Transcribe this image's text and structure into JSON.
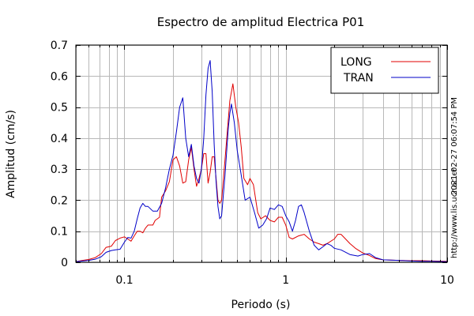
{
  "chart_data": {
    "type": "line",
    "title": "Espectro de amplitud Electrica P01",
    "xlabel": "Periodo (s)",
    "ylabel": "Amplitud (cm/s)",
    "x_scale": "log",
    "xlim": [
      0.05,
      10
    ],
    "ylim": [
      0,
      0.7
    ],
    "x_tick_labels": [
      "0.1",
      "1",
      "10"
    ],
    "y_tick_labels": [
      "0",
      "0.1",
      "0.2",
      "0.3",
      "0.4",
      "0.5",
      "0.6",
      "0.7"
    ],
    "grid": true,
    "legend_position": "top-right",
    "side_labels": [
      "2021-02-27 06:07:54 PM",
      "http://www.lis.ucr.ac.cr"
    ],
    "series": [
      {
        "name": "LONG",
        "color": "#e00000",
        "points": [
          [
            0.05,
            0.002
          ],
          [
            0.055,
            0.006
          ],
          [
            0.06,
            0.009
          ],
          [
            0.066,
            0.015
          ],
          [
            0.072,
            0.028
          ],
          [
            0.077,
            0.048
          ],
          [
            0.083,
            0.052
          ],
          [
            0.088,
            0.07
          ],
          [
            0.094,
            0.078
          ],
          [
            0.1,
            0.082
          ],
          [
            0.105,
            0.075
          ],
          [
            0.11,
            0.068
          ],
          [
            0.115,
            0.085
          ],
          [
            0.12,
            0.1
          ],
          [
            0.125,
            0.1
          ],
          [
            0.13,
            0.095
          ],
          [
            0.135,
            0.11
          ],
          [
            0.14,
            0.12
          ],
          [
            0.145,
            0.12
          ],
          [
            0.15,
            0.12
          ],
          [
            0.155,
            0.135
          ],
          [
            0.16,
            0.14
          ],
          [
            0.165,
            0.145
          ],
          [
            0.17,
            0.21
          ],
          [
            0.18,
            0.23
          ],
          [
            0.19,
            0.26
          ],
          [
            0.2,
            0.33
          ],
          [
            0.21,
            0.34
          ],
          [
            0.22,
            0.31
          ],
          [
            0.23,
            0.255
          ],
          [
            0.24,
            0.26
          ],
          [
            0.25,
            0.33
          ],
          [
            0.26,
            0.37
          ],
          [
            0.27,
            0.3
          ],
          [
            0.28,
            0.245
          ],
          [
            0.29,
            0.27
          ],
          [
            0.3,
            0.3
          ],
          [
            0.31,
            0.35
          ],
          [
            0.32,
            0.35
          ],
          [
            0.33,
            0.255
          ],
          [
            0.34,
            0.29
          ],
          [
            0.35,
            0.34
          ],
          [
            0.36,
            0.34
          ],
          [
            0.37,
            0.27
          ],
          [
            0.38,
            0.2
          ],
          [
            0.39,
            0.19
          ],
          [
            0.4,
            0.2
          ],
          [
            0.42,
            0.33
          ],
          [
            0.45,
            0.52
          ],
          [
            0.47,
            0.575
          ],
          [
            0.49,
            0.5
          ],
          [
            0.51,
            0.45
          ],
          [
            0.53,
            0.37
          ],
          [
            0.55,
            0.27
          ],
          [
            0.58,
            0.25
          ],
          [
            0.6,
            0.27
          ],
          [
            0.63,
            0.25
          ],
          [
            0.67,
            0.16
          ],
          [
            0.7,
            0.14
          ],
          [
            0.75,
            0.15
          ],
          [
            0.8,
            0.135
          ],
          [
            0.85,
            0.13
          ],
          [
            0.9,
            0.145
          ],
          [
            0.95,
            0.145
          ],
          [
            1.0,
            0.12
          ],
          [
            1.05,
            0.08
          ],
          [
            1.1,
            0.075
          ],
          [
            1.2,
            0.085
          ],
          [
            1.3,
            0.09
          ],
          [
            1.4,
            0.075
          ],
          [
            1.5,
            0.065
          ],
          [
            1.6,
            0.06
          ],
          [
            1.7,
            0.055
          ],
          [
            1.8,
            0.06
          ],
          [
            2.0,
            0.075
          ],
          [
            2.1,
            0.09
          ],
          [
            2.2,
            0.09
          ],
          [
            2.3,
            0.08
          ],
          [
            2.5,
            0.06
          ],
          [
            2.7,
            0.045
          ],
          [
            3.0,
            0.03
          ],
          [
            3.3,
            0.022
          ],
          [
            3.6,
            0.012
          ],
          [
            4.0,
            0.008
          ],
          [
            5.0,
            0.006
          ],
          [
            6.0,
            0.005
          ],
          [
            7.0,
            0.005
          ],
          [
            8.0,
            0.004
          ],
          [
            10.0,
            0.003
          ]
        ]
      },
      {
        "name": "TRAN",
        "color": "#0000c8",
        "points": [
          [
            0.05,
            0.002
          ],
          [
            0.055,
            0.004
          ],
          [
            0.06,
            0.006
          ],
          [
            0.066,
            0.01
          ],
          [
            0.072,
            0.018
          ],
          [
            0.077,
            0.032
          ],
          [
            0.083,
            0.038
          ],
          [
            0.088,
            0.04
          ],
          [
            0.094,
            0.042
          ],
          [
            0.1,
            0.065
          ],
          [
            0.105,
            0.08
          ],
          [
            0.11,
            0.078
          ],
          [
            0.115,
            0.1
          ],
          [
            0.12,
            0.14
          ],
          [
            0.125,
            0.175
          ],
          [
            0.13,
            0.19
          ],
          [
            0.135,
            0.18
          ],
          [
            0.14,
            0.18
          ],
          [
            0.15,
            0.165
          ],
          [
            0.16,
            0.165
          ],
          [
            0.17,
            0.19
          ],
          [
            0.18,
            0.24
          ],
          [
            0.19,
            0.3
          ],
          [
            0.2,
            0.345
          ],
          [
            0.21,
            0.42
          ],
          [
            0.22,
            0.5
          ],
          [
            0.23,
            0.53
          ],
          [
            0.24,
            0.4
          ],
          [
            0.25,
            0.34
          ],
          [
            0.26,
            0.38
          ],
          [
            0.27,
            0.31
          ],
          [
            0.28,
            0.27
          ],
          [
            0.29,
            0.255
          ],
          [
            0.3,
            0.3
          ],
          [
            0.31,
            0.4
          ],
          [
            0.32,
            0.54
          ],
          [
            0.33,
            0.625
          ],
          [
            0.34,
            0.65
          ],
          [
            0.35,
            0.55
          ],
          [
            0.36,
            0.38
          ],
          [
            0.37,
            0.26
          ],
          [
            0.38,
            0.18
          ],
          [
            0.39,
            0.14
          ],
          [
            0.4,
            0.15
          ],
          [
            0.42,
            0.28
          ],
          [
            0.44,
            0.43
          ],
          [
            0.45,
            0.48
          ],
          [
            0.46,
            0.51
          ],
          [
            0.48,
            0.45
          ],
          [
            0.5,
            0.36
          ],
          [
            0.53,
            0.28
          ],
          [
            0.56,
            0.2
          ],
          [
            0.6,
            0.21
          ],
          [
            0.64,
            0.16
          ],
          [
            0.68,
            0.11
          ],
          [
            0.72,
            0.12
          ],
          [
            0.76,
            0.14
          ],
          [
            0.8,
            0.175
          ],
          [
            0.85,
            0.17
          ],
          [
            0.9,
            0.185
          ],
          [
            0.95,
            0.18
          ],
          [
            1.0,
            0.15
          ],
          [
            1.05,
            0.13
          ],
          [
            1.1,
            0.1
          ],
          [
            1.15,
            0.135
          ],
          [
            1.2,
            0.18
          ],
          [
            1.25,
            0.185
          ],
          [
            1.3,
            0.16
          ],
          [
            1.4,
            0.1
          ],
          [
            1.5,
            0.055
          ],
          [
            1.6,
            0.04
          ],
          [
            1.7,
            0.05
          ],
          [
            1.8,
            0.06
          ],
          [
            1.9,
            0.055
          ],
          [
            2.0,
            0.045
          ],
          [
            2.2,
            0.04
          ],
          [
            2.5,
            0.025
          ],
          [
            2.8,
            0.02
          ],
          [
            3.0,
            0.025
          ],
          [
            3.3,
            0.028
          ],
          [
            3.6,
            0.015
          ],
          [
            4.0,
            0.008
          ],
          [
            5.0,
            0.006
          ],
          [
            6.0,
            0.004
          ],
          [
            7.0,
            0.003
          ],
          [
            8.0,
            0.003
          ],
          [
            10.0,
            0.002
          ]
        ]
      }
    ]
  }
}
